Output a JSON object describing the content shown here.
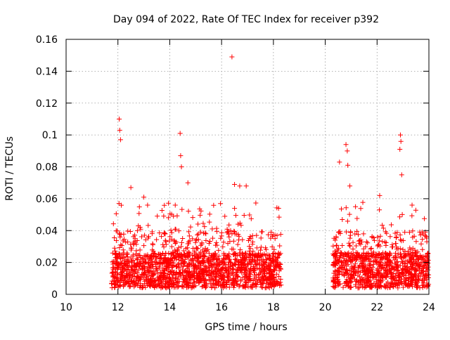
{
  "chart_data": {
    "type": "scatter",
    "title": "Day 094 of 2022, Rate Of TEC Index for receiver p392",
    "xlabel": "GPS time / hours",
    "ylabel": "ROTI / TECUs",
    "xlim": [
      10,
      24
    ],
    "ylim": [
      0,
      0.16
    ],
    "xticks": [
      10,
      12,
      14,
      16,
      18,
      20,
      22,
      24
    ],
    "yticks": [
      0,
      0.02,
      0.04,
      0.06,
      0.08,
      0.1,
      0.12,
      0.14,
      0.16
    ],
    "xtick_labels": [
      "10",
      "12",
      "14",
      "16",
      "18",
      "20",
      "22",
      "24"
    ],
    "ytick_labels": [
      "0",
      "0.02",
      "0.04",
      "0.06",
      "0.08",
      "0.1",
      "0.12",
      "0.14",
      "0.16"
    ],
    "grid": true,
    "marker": "+",
    "color": "#ff0000",
    "series": [
      {
        "name": "ROTI",
        "segments": [
          {
            "x_start": 11.75,
            "x_end": 18.3
          },
          {
            "x_start": 20.3,
            "x_end": 24.0
          }
        ],
        "notable_points": [
          {
            "x": 16.4,
            "y": 0.149
          },
          {
            "x": 12.05,
            "y": 0.11
          },
          {
            "x": 12.07,
            "y": 0.103
          },
          {
            "x": 12.1,
            "y": 0.097
          },
          {
            "x": 14.4,
            "y": 0.101
          },
          {
            "x": 14.42,
            "y": 0.087
          },
          {
            "x": 14.45,
            "y": 0.08
          },
          {
            "x": 20.8,
            "y": 0.094
          },
          {
            "x": 20.85,
            "y": 0.09
          },
          {
            "x": 20.87,
            "y": 0.081
          },
          {
            "x": 20.55,
            "y": 0.083
          },
          {
            "x": 22.9,
            "y": 0.1
          },
          {
            "x": 22.92,
            "y": 0.096
          },
          {
            "x": 22.88,
            "y": 0.091
          },
          {
            "x": 22.95,
            "y": 0.075
          },
          {
            "x": 16.5,
            "y": 0.069
          },
          {
            "x": 16.7,
            "y": 0.068
          },
          {
            "x": 16.95,
            "y": 0.068
          },
          {
            "x": 14.7,
            "y": 0.07
          },
          {
            "x": 12.5,
            "y": 0.067
          },
          {
            "x": 13.0,
            "y": 0.061
          },
          {
            "x": 18.2,
            "y": 0.054
          },
          {
            "x": 20.95,
            "y": 0.068
          },
          {
            "x": 22.1,
            "y": 0.062
          },
          {
            "x": 23.35,
            "y": 0.056
          }
        ]
      }
    ]
  }
}
